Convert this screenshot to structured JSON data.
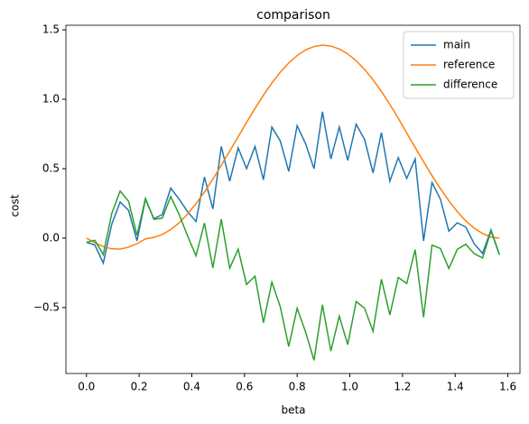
{
  "chart_data": {
    "type": "line",
    "title": "comparison",
    "x_label": "beta",
    "y_label": "cost",
    "x": [
      0,
      0.032,
      0.064,
      0.096,
      0.128,
      0.16,
      0.192,
      0.224,
      0.256,
      0.288,
      0.32,
      0.352,
      0.384,
      0.416,
      0.448,
      0.48,
      0.512,
      0.544,
      0.576,
      0.608,
      0.64,
      0.672,
      0.704,
      0.736,
      0.768,
      0.8,
      0.832,
      0.864,
      0.896,
      0.928,
      0.96,
      0.992,
      1.024,
      1.056,
      1.088,
      1.12,
      1.152,
      1.184,
      1.216,
      1.248,
      1.28,
      1.312,
      1.344,
      1.376,
      1.408,
      1.44,
      1.472,
      1.504,
      1.536,
      1.568
    ],
    "series": [
      {
        "name": "main",
        "color": "#1f77b4",
        "values": [
          -0.03,
          -0.05,
          -0.18,
          0.1,
          0.26,
          0.2,
          -0.02,
          0.28,
          0.14,
          0.17,
          0.36,
          0.28,
          0.19,
          0.12,
          0.44,
          0.21,
          0.66,
          0.41,
          0.65,
          0.5,
          0.66,
          0.42,
          0.8,
          0.7,
          0.48,
          0.81,
          0.68,
          0.5,
          0.91,
          0.57,
          0.8,
          0.56,
          0.82,
          0.71,
          0.47,
          0.76,
          0.41,
          0.58,
          0.43,
          0.57,
          -0.02,
          0.4,
          0.28,
          0.05,
          0.11,
          0.08,
          -0.04,
          -0.11,
          0.06,
          -0.12
        ]
      },
      {
        "name": "reference",
        "color": "#ff7f0e",
        "values": [
          0,
          -0.034,
          -0.061,
          -0.077,
          -0.079,
          -0.065,
          -0.04,
          -0.006,
          0.005,
          0.026,
          0.061,
          0.11,
          0.174,
          0.248,
          0.332,
          0.425,
          0.524,
          0.627,
          0.73,
          0.834,
          0.934,
          1.029,
          1.117,
          1.195,
          1.261,
          1.315,
          1.356,
          1.38,
          1.39,
          1.383,
          1.362,
          1.327,
          1.277,
          1.215,
          1.141,
          1.056,
          0.963,
          0.863,
          0.757,
          0.653,
          0.55,
          0.45,
          0.355,
          0.269,
          0.191,
          0.124,
          0.072,
          0.033,
          0.008,
          0
        ]
      },
      {
        "name": "difference",
        "color": "#2ca02c",
        "values": [
          -0.03,
          -0.016,
          -0.119,
          0.177,
          0.339,
          0.265,
          0.02,
          0.286,
          0.135,
          0.144,
          0.299,
          0.17,
          0.016,
          -0.128,
          0.108,
          -0.215,
          0.136,
          -0.217,
          -0.08,
          -0.334,
          -0.274,
          -0.609,
          -0.317,
          -0.495,
          -0.781,
          -0.505,
          -0.676,
          -0.88,
          -0.48,
          -0.813,
          -0.562,
          -0.767,
          -0.457,
          -0.505,
          -0.671,
          -0.296,
          -0.553,
          -0.283,
          -0.327,
          -0.083,
          -0.57,
          -0.05,
          -0.075,
          -0.219,
          -0.081,
          -0.044,
          -0.112,
          -0.143,
          0.052,
          -0.12
        ]
      }
    ],
    "xlim": [
      -0.078,
      1.646
    ],
    "ylim": [
      -0.975,
      1.533
    ],
    "xticks": [
      {
        "value": 0,
        "label": "0.0"
      },
      {
        "value": 0.2,
        "label": "0.2"
      },
      {
        "value": 0.4,
        "label": "0.4"
      },
      {
        "value": 0.6,
        "label": "0.6"
      },
      {
        "value": 0.8,
        "label": "0.8"
      },
      {
        "value": 1.0,
        "label": "1.0"
      },
      {
        "value": 1.2,
        "label": "1.2"
      },
      {
        "value": 1.4,
        "label": "1.4"
      },
      {
        "value": 1.6,
        "label": "1.6"
      }
    ],
    "yticks": [
      {
        "value": -0.5,
        "label": "−0.5"
      },
      {
        "value": 0,
        "label": "0.0"
      },
      {
        "value": 0.5,
        "label": "0.5"
      },
      {
        "value": 1.0,
        "label": "1.0"
      },
      {
        "value": 1.5,
        "label": "1.5"
      }
    ],
    "legend": "upper right",
    "grid": false
  }
}
